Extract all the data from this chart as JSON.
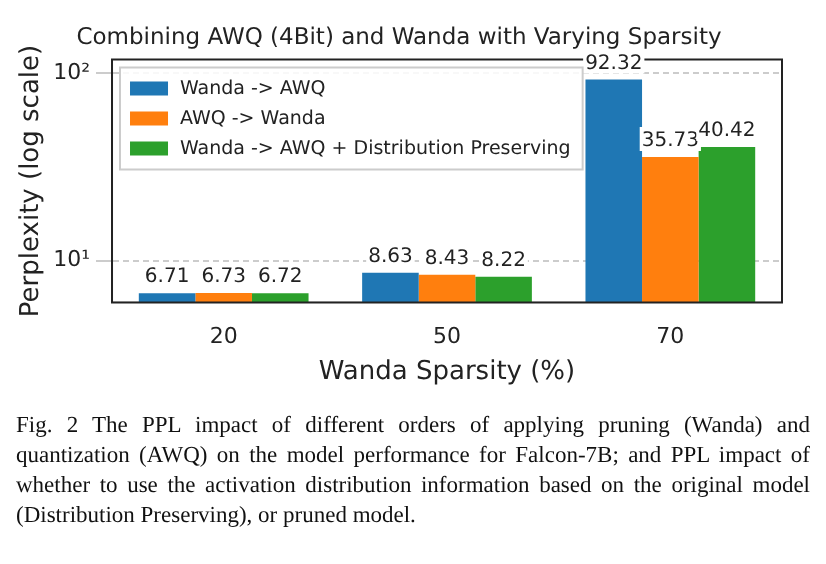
{
  "chart_data": {
    "type": "bar",
    "title": "Combining AWQ (4Bit) and Wanda with Varying Sparsity",
    "xlabel": "Wanda Sparsity (%)",
    "ylabel": "Perplexity (log scale)",
    "categories": [
      "20",
      "50",
      "70"
    ],
    "series": [
      {
        "name": "Wanda -> AWQ",
        "color": "#1f77b4",
        "values": [
          6.71,
          8.63,
          92.32
        ]
      },
      {
        "name": "AWQ -> Wanda",
        "color": "#ff7f0e",
        "values": [
          6.73,
          8.43,
          35.73
        ]
      },
      {
        "name": "Wanda -> AWQ + Distribution Preserving",
        "color": "#2ca02c",
        "values": [
          6.72,
          8.22,
          40.42
        ]
      }
    ],
    "log": "y",
    "ylim": [
      6,
      118
    ],
    "yticks": [
      {
        "value": 10,
        "label": "10¹"
      },
      {
        "value": 100,
        "label": "10²"
      }
    ],
    "grid": "y",
    "legend": "top left",
    "data_labels": true,
    "annotations": [
      "Fig. 2 The PPL impact of different orders of applying pruning (Wanda) and quantization (AWQ) on the model performance for Falcon-7B; and PPL impact of whether to use the activation distribution information based on the original model (Distribution Preserving), or pruned model."
    ]
  }
}
